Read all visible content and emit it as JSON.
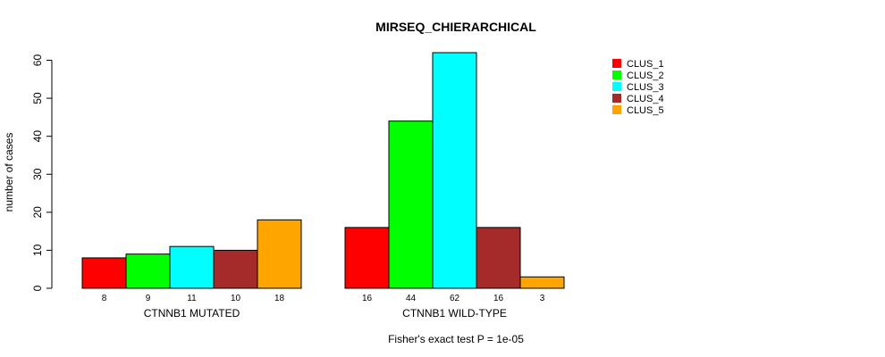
{
  "chart_data": {
    "type": "bar",
    "title": "MIRSEQ_CHIERARCHICAL",
    "ylabel": "number of cases",
    "subtitle": "Fisher's exact test P = 1e-05",
    "ylim": [
      0,
      62
    ],
    "yticks": [
      0,
      10,
      20,
      30,
      40,
      50,
      60
    ],
    "grid": false,
    "legend_position": "top-right",
    "groups": [
      "CTNNB1 MUTATED",
      "CTNNB1 WILD-TYPE"
    ],
    "series": [
      {
        "name": "CLUS_1",
        "color": "#ff0000",
        "values": [
          8,
          16
        ]
      },
      {
        "name": "CLUS_2",
        "color": "#00ff00",
        "values": [
          9,
          44
        ]
      },
      {
        "name": "CLUS_3",
        "color": "#00ffff",
        "values": [
          11,
          62
        ]
      },
      {
        "name": "CLUS_4",
        "color": "#a52a2a",
        "values": [
          10,
          16
        ]
      },
      {
        "name": "CLUS_5",
        "color": "#ffa500",
        "values": [
          18,
          3
        ]
      }
    ]
  }
}
